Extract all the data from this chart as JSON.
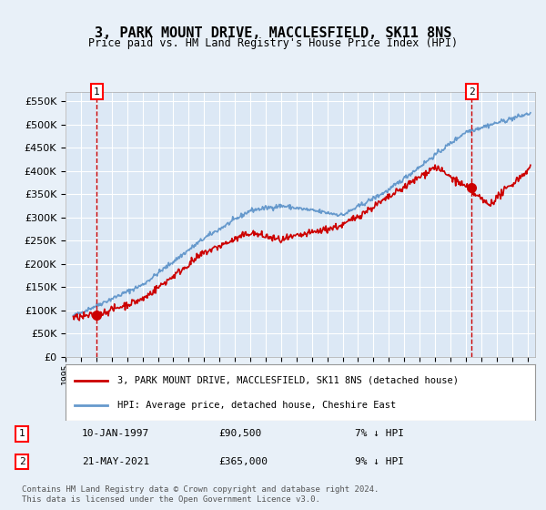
{
  "title": "3, PARK MOUNT DRIVE, MACCLESFIELD, SK11 8NS",
  "subtitle": "Price paid vs. HM Land Registry's House Price Index (HPI)",
  "ylim": [
    0,
    570000
  ],
  "yticks": [
    0,
    50000,
    100000,
    150000,
    200000,
    250000,
    300000,
    350000,
    400000,
    450000,
    500000,
    550000
  ],
  "ytick_labels": [
    "£0",
    "£50K",
    "£100K",
    "£150K",
    "£200K",
    "£250K",
    "£300K",
    "£350K",
    "£400K",
    "£450K",
    "£500K",
    "£550K"
  ],
  "xlim_start": 1995.5,
  "xlim_end": 2025.5,
  "background_color": "#e8f0f8",
  "plot_bg_color": "#dce8f5",
  "grid_color": "#ffffff",
  "sale1_date": 1997.03,
  "sale1_price": 90500,
  "sale1_label": "1",
  "sale2_date": 2021.39,
  "sale2_price": 365000,
  "sale2_label": "2",
  "line_color_property": "#cc0000",
  "line_color_hpi": "#6699cc",
  "marker_color": "#cc0000",
  "dashed_color": "#cc0000",
  "legend_property": "3, PARK MOUNT DRIVE, MACCLESFIELD, SK11 8NS (detached house)",
  "legend_hpi": "HPI: Average price, detached house, Cheshire East",
  "annotation1_date": "10-JAN-1997",
  "annotation1_price": "£90,500",
  "annotation1_hpi": "7% ↓ HPI",
  "annotation2_date": "21-MAY-2021",
  "annotation2_price": "£365,000",
  "annotation2_hpi": "9% ↓ HPI",
  "footer": "Contains HM Land Registry data © Crown copyright and database right 2024.\nThis data is licensed under the Open Government Licence v3.0."
}
